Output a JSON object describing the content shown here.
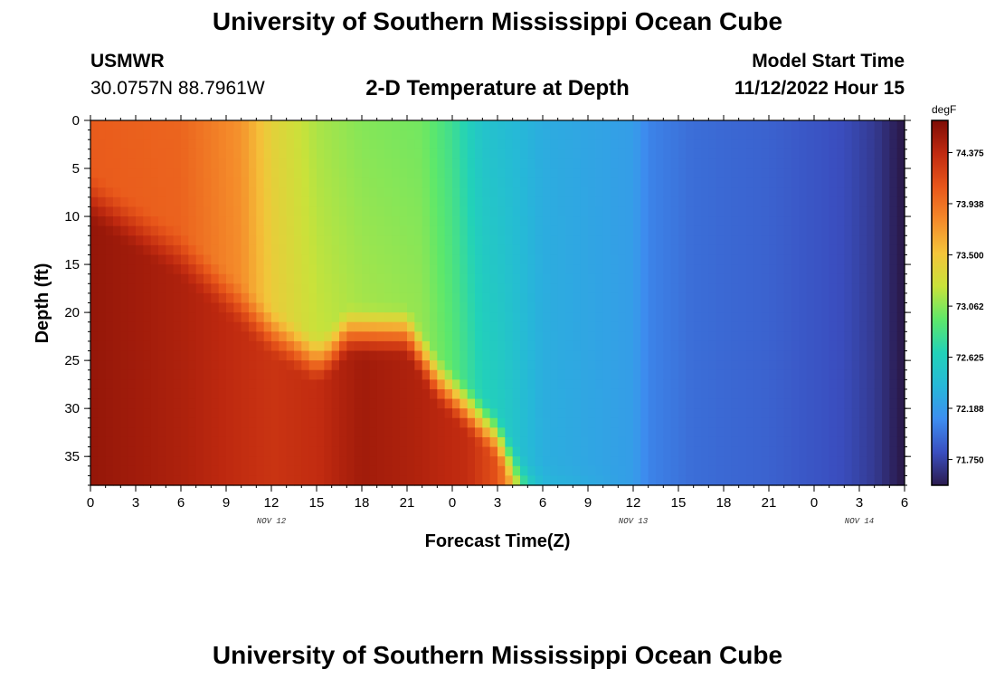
{
  "page": {
    "title": "University of Southern Mississippi Ocean Cube",
    "footer_title": "University of Southern Mississippi Ocean Cube"
  },
  "station": {
    "id": "USMWR",
    "coords": "30.0757N  88.7961W"
  },
  "model": {
    "start_label": "Model Start Time",
    "start_value": "11/12/2022 Hour 15"
  },
  "chart_data": {
    "type": "heatmap",
    "title": "2-D Temperature at Depth",
    "xlabel": "Forecast Time(Z)",
    "ylabel": "Depth (ft)",
    "x_tick_labels": [
      "0",
      "3",
      "6",
      "9",
      "12",
      "15",
      "18",
      "21",
      "0",
      "3",
      "6",
      "9",
      "12",
      "15",
      "18",
      "21",
      "0",
      "3",
      "6"
    ],
    "x_range_hours": [
      0,
      54
    ],
    "date_labels": [
      {
        "text": "NOV 12",
        "hour": 12
      },
      {
        "text": "NOV 13",
        "hour": 36
      },
      {
        "text": "NOV 14",
        "hour": 51
      }
    ],
    "y_ticks": [
      0,
      5,
      10,
      15,
      20,
      25,
      30,
      35
    ],
    "ylim": [
      0,
      38
    ],
    "y_inverted": true,
    "colorbar": {
      "unit": "degF",
      "tick_values": [
        74.375,
        73.938,
        73.5,
        73.062,
        72.625,
        72.188,
        71.75
      ],
      "tick_labels": [
        "74.375",
        "73.938",
        "73.500",
        "73.062",
        "72.625",
        "72.188",
        "71.750"
      ],
      "min": 71.53,
      "max": 74.65,
      "colors": [
        "#2b1b4e",
        "#3a4fc0",
        "#3d8ef0",
        "#26b8d8",
        "#22d2b8",
        "#5ee86a",
        "#c9e23a",
        "#f4c43a",
        "#f48a2a",
        "#e8561a",
        "#c02a10",
        "#7e0c05"
      ]
    },
    "surface_profile": [
      {
        "hour": 0,
        "degF": 74.05
      },
      {
        "hour": 6,
        "degF": 74.0
      },
      {
        "hour": 10,
        "degF": 73.75
      },
      {
        "hour": 12,
        "degF": 73.4
      },
      {
        "hour": 15,
        "degF": 73.15
      },
      {
        "hour": 18,
        "degF": 73.05
      },
      {
        "hour": 22,
        "degF": 73.0
      },
      {
        "hour": 24,
        "degF": 72.8
      },
      {
        "hour": 26,
        "degF": 72.5
      },
      {
        "hour": 30,
        "degF": 72.3
      },
      {
        "hour": 36,
        "degF": 72.2
      },
      {
        "hour": 37,
        "degF": 72.05
      },
      {
        "hour": 40,
        "degF": 71.95
      },
      {
        "hour": 45,
        "degF": 71.9
      },
      {
        "hour": 50,
        "degF": 71.8
      },
      {
        "hour": 52,
        "degF": 71.7
      },
      {
        "hour": 53,
        "degF": 71.6
      },
      {
        "hour": 54,
        "degF": 71.5
      }
    ],
    "bottom_profile": [
      {
        "hour": 0,
        "degF": 74.55
      },
      {
        "hour": 6,
        "degF": 74.45
      },
      {
        "hour": 12,
        "degF": 74.3
      },
      {
        "hour": 15,
        "degF": 74.35
      },
      {
        "hour": 18,
        "degF": 74.5
      },
      {
        "hour": 21,
        "degF": 74.45
      },
      {
        "hour": 25,
        "degF": 74.35
      },
      {
        "hour": 27,
        "degF": 74.1
      },
      {
        "hour": 28,
        "degF": 73.6
      },
      {
        "hour": 29,
        "degF": 72.9
      },
      {
        "hour": 30,
        "degF": 72.45
      },
      {
        "hour": 36,
        "degF": 72.2
      },
      {
        "hour": 37,
        "degF": 72.05
      },
      {
        "hour": 40,
        "degF": 71.95
      },
      {
        "hour": 45,
        "degF": 71.9
      },
      {
        "hour": 50,
        "degF": 71.8
      },
      {
        "hour": 52,
        "degF": 71.7
      },
      {
        "hour": 53,
        "degF": 71.6
      },
      {
        "hour": 54,
        "degF": 71.5
      }
    ],
    "warm_layer_top_ft": [
      {
        "hour": 0,
        "ft": 8
      },
      {
        "hour": 6,
        "ft": 14
      },
      {
        "hour": 9,
        "ft": 18
      },
      {
        "hour": 12,
        "ft": 22
      },
      {
        "hour": 15,
        "ft": 25
      },
      {
        "hour": 16,
        "ft": 24
      },
      {
        "hour": 17,
        "ft": 22
      },
      {
        "hour": 21,
        "ft": 22
      },
      {
        "hour": 23,
        "ft": 27
      },
      {
        "hour": 25,
        "ft": 30
      },
      {
        "hour": 27,
        "ft": 33
      },
      {
        "hour": 28,
        "ft": 36
      },
      {
        "hour": 29,
        "ft": 38
      },
      {
        "hour": 54,
        "ft": 38
      }
    ]
  }
}
